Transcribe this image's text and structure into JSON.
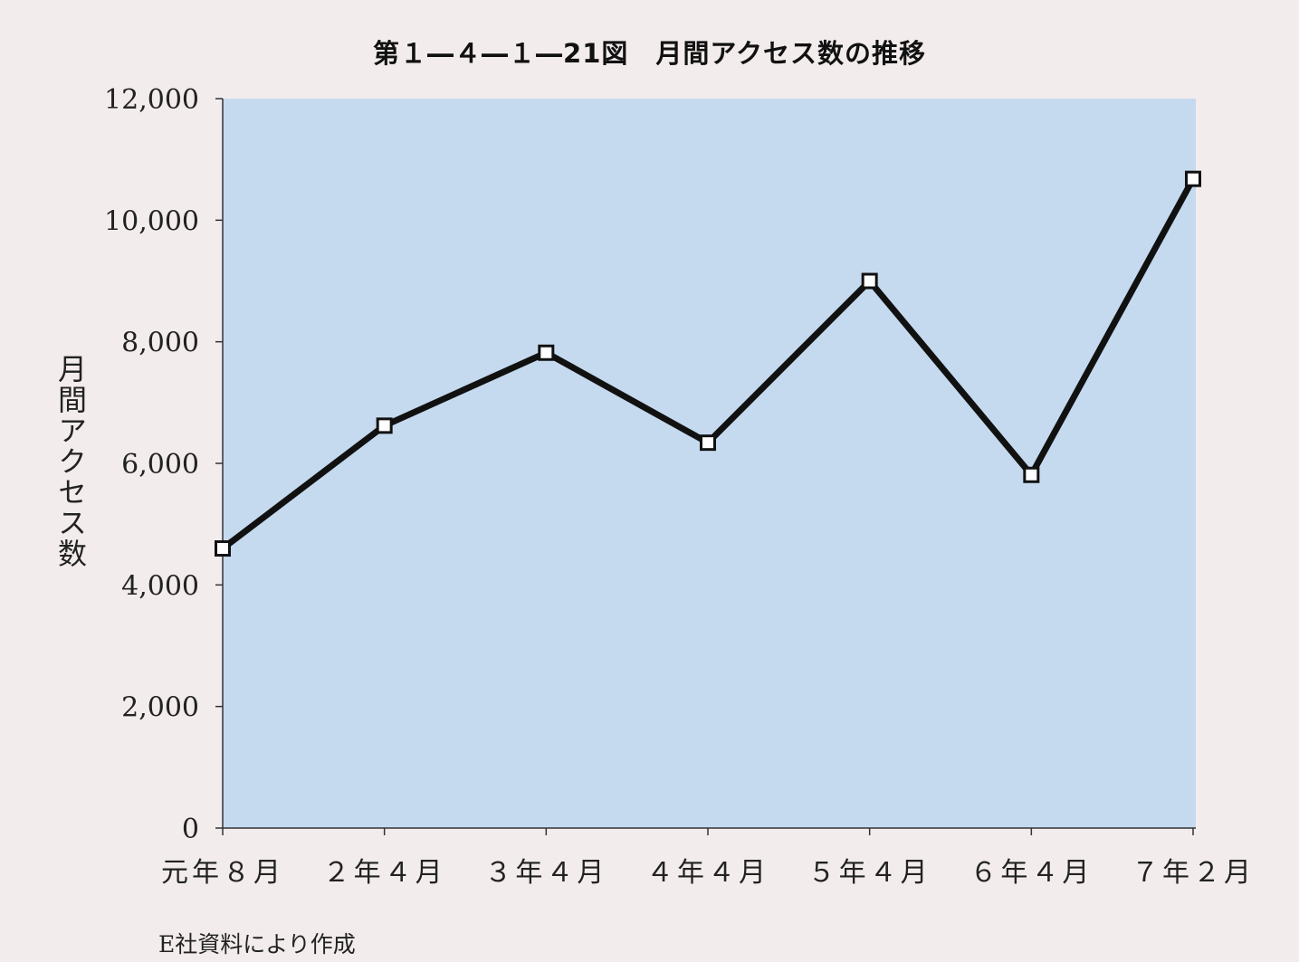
{
  "chart_data": {
    "type": "line",
    "title": "第１―４―１―21図　月間アクセス数の推移",
    "xlabel": "",
    "ylabel": "月間アクセス数",
    "categories": [
      "元年８月",
      "２年４月",
      "３年４月",
      "４年４月",
      "５年４月",
      "６年４月",
      "７年２月"
    ],
    "y_tick_labels": [
      "0",
      "2,000",
      "4,000",
      "6,000",
      "8,000",
      "10,000",
      "12,000"
    ],
    "y_ticks": [
      0,
      2000,
      4000,
      6000,
      8000,
      10000,
      12000
    ],
    "ylim": [
      0,
      12000
    ],
    "series": [
      {
        "values": [
          4600,
          6620,
          7820,
          6340,
          9000,
          5810,
          10680
        ]
      }
    ],
    "marker": "square",
    "grid": false,
    "legend": "none"
  },
  "source_note": "E社資料により作成",
  "colors": {
    "background": "#f3ecec",
    "plot_area": "#c5daef",
    "line": "#111111",
    "marker_fill": "#ffffff"
  }
}
